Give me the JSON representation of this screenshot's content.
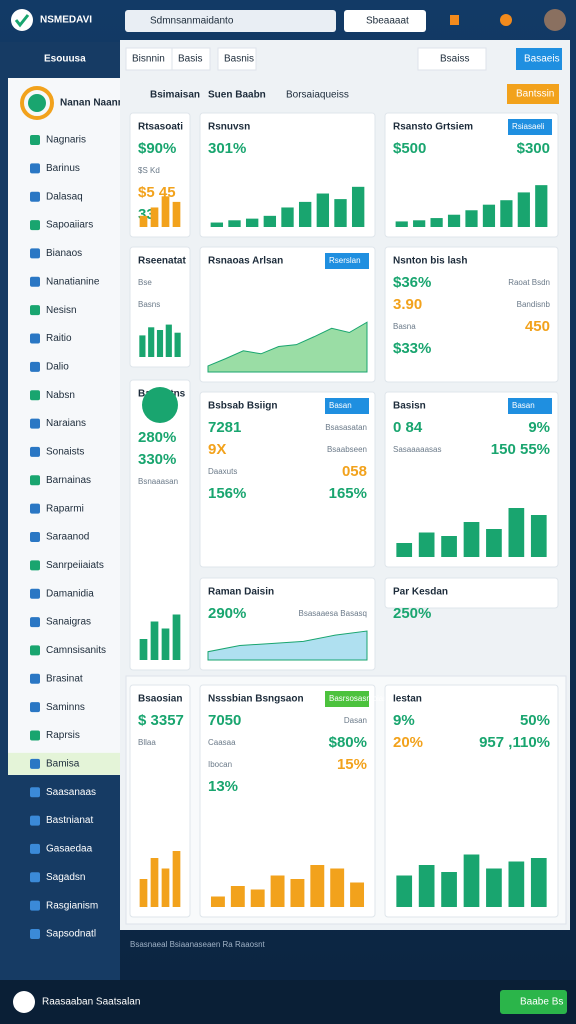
{
  "header": {
    "title": "NSMEDAVI",
    "search": "Sdmnsanmaidanto",
    "button": "Sbeaaaat"
  },
  "sidebar": {
    "brand": "Esouusa",
    "user": "Nanan Naanmdo",
    "items": [
      "Nagnaris",
      "Barinus",
      "Dalasaq",
      "Sapoaiiars",
      "Bianaos",
      "Nanatianine",
      "Nesisn",
      "Raitio",
      "Dalio",
      "Nabsn",
      "Naraians",
      "Sonaists",
      "Barnainas",
      "Raparmi",
      "Saraanod",
      "Sanrpeiiaiats",
      "Damanidia",
      "Sanaigras",
      "Camnsisanits",
      "Brasinat",
      "Saminns",
      "Raprsis",
      "Bamisa",
      "Saasanaas",
      "Bastnianat",
      "Gasaedaa",
      "Sagadsn",
      "Rasgianism",
      "Sapsodnatl"
    ]
  },
  "tabs": [
    "Bisnnin",
    "Basis",
    "Basnis"
  ],
  "tab_search": "Bsaiss",
  "tab_button": "Basaeis",
  "subtabs": [
    "Bsimaisan",
    "Suen Baabn",
    "Borsaiaqueiss"
  ],
  "action_button": "Bantssin",
  "cards": [
    {
      "title": "Rtsasoati",
      "texts": [
        "$90%",
        "$S Kd",
        "$5 45",
        "33"
      ],
      "chart": {
        "type": "bar",
        "values": [
          20,
          35,
          55,
          45
        ],
        "color": "#f2a21c",
        "ylim": [
          0,
          100
        ]
      }
    },
    {
      "title": "Rsnuvsn",
      "texts": [
        "301%"
      ],
      "chart": {
        "type": "bar",
        "values": [
          8,
          12,
          15,
          20,
          35,
          45,
          60,
          50,
          72
        ],
        "color": "#19a56f",
        "ylim": [
          0,
          100
        ]
      }
    },
    {
      "title": "Rsansto Grtsiem",
      "button": "Rsiasaeli",
      "texts": [
        "$500",
        "$300"
      ],
      "chart": {
        "type": "bar",
        "values": [
          10,
          12,
          16,
          22,
          30,
          40,
          48,
          62,
          75
        ],
        "color": "#19a56f",
        "ylim": [
          0,
          100
        ]
      }
    },
    {
      "title": "Rseenatat",
      "texts": [
        "Bse",
        "Basns"
      ],
      "chart": {
        "type": "bar",
        "values": [
          40,
          55,
          50,
          60,
          45
        ],
        "color": "#19a56f",
        "ylim": [
          0,
          100
        ]
      }
    },
    {
      "title": "Rsnaoas Arlsan",
      "button": "Rserslan",
      "texts": [],
      "chart": {
        "type": "area",
        "values": [
          10,
          22,
          35,
          30,
          42,
          45,
          58,
          72,
          65,
          82
        ],
        "color": "#6fcf7f",
        "ylim": [
          0,
          100
        ]
      }
    },
    {
      "title": "Nsnton bis lash",
      "texts": [
        "$36%",
        "Raoat Bsdn",
        "3.90",
        "Bandisnb",
        "Basna",
        "450",
        "$33%"
      ]
    },
    {
      "title": "Basisatns",
      "texts": [
        "280%",
        "330%",
        "Bsnaaasan"
      ],
      "chart": {
        "type": "bar",
        "values": [
          30,
          55,
          45,
          65
        ],
        "color": "#19a56f",
        "ylim": [
          0,
          100
        ]
      }
    },
    {
      "title": "Bsbsab Bsiign",
      "button": "Basan",
      "texts": [
        "7281",
        "Bsasasatan",
        "9X",
        "Bsaabseen",
        "Daaxuts",
        "058",
        "156%",
        "165%"
      ]
    },
    {
      "title": "Basisn",
      "button": "Basan",
      "texts": [
        "0 84",
        "9%",
        "Sasaaaaasas",
        "150 55%"
      ],
      "chart": {
        "type": "bar",
        "values": [
          20,
          35,
          30,
          50,
          40,
          70,
          60
        ],
        "color": "#19a56f",
        "ylim": [
          0,
          100
        ]
      }
    },
    {
      "title": "Raman Daisin",
      "texts": [
        "290%",
        "Bsasaaesa Basasq"
      ],
      "chart": {
        "type": "area",
        "values": [
          20,
          35,
          40,
          45,
          60,
          70
        ],
        "color": "#8dd3ea",
        "ylim": [
          0,
          100
        ]
      }
    },
    {
      "title": "Par Kesdan",
      "texts": [
        "250%"
      ]
    },
    {
      "title": "Bsaosian",
      "texts": [
        "$ 3357",
        "Bllaa"
      ],
      "chart": {
        "type": "bar",
        "values": [
          40,
          70,
          55,
          80
        ],
        "color": "#f2a21c",
        "ylim": [
          0,
          100
        ]
      }
    },
    {
      "title": "Nsssbian Bsngsaon",
      "button": "Basrsosasnibian",
      "texts": [
        "7050",
        "Dasan",
        "Caasaa",
        "$80%",
        "Ibocan",
        "15%",
        "13%"
      ],
      "chart": {
        "type": "bar",
        "values": [
          15,
          30,
          25,
          45,
          40,
          60,
          55,
          35
        ],
        "color": "#f2a21c",
        "ylim": [
          0,
          100
        ]
      }
    },
    {
      "title": "Iestan",
      "texts": [
        "9%",
        "50%",
        "20%",
        "957 ,110%"
      ],
      "chart": {
        "type": "bar",
        "values": [
          45,
          60,
          50,
          75,
          55,
          65,
          70
        ],
        "color": "#19a56f",
        "ylim": [
          0,
          100
        ]
      }
    }
  ],
  "footer_note": "Bsasnaeal Bsiaanaseaen Ra Raaosnt",
  "bottom": {
    "text": "Raasaaban Saatsalan",
    "button": "Baabe Bs"
  }
}
